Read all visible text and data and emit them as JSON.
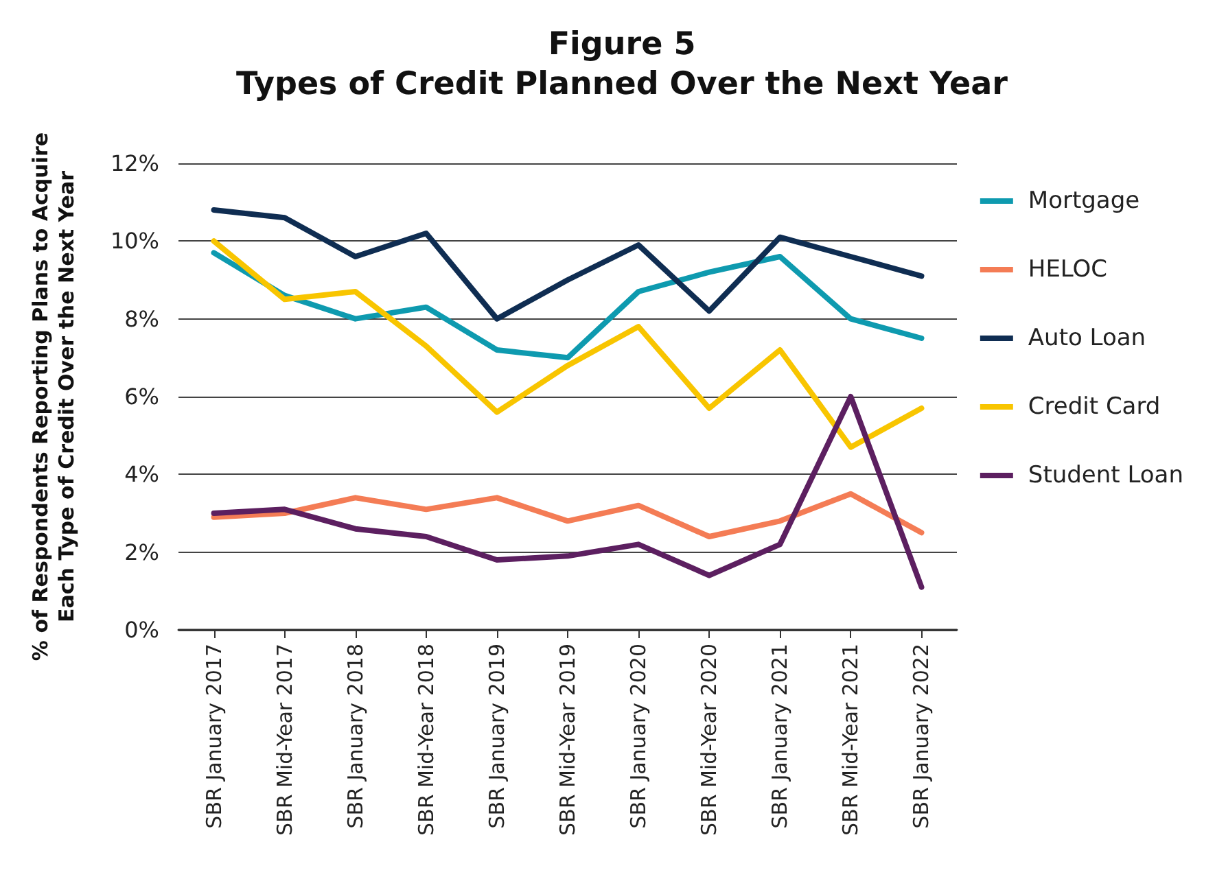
{
  "chart_data": {
    "type": "line",
    "title": "Figure 5",
    "subtitle": "Types of Credit Planned Over the Next Year",
    "ylabel": "% of Respondents Reporting Plans to Acquire\nEach Type of Credit Over the Next Year",
    "categories": [
      "SBR January 2017",
      "SBR Mid-Year 2017",
      "SBR January 2018",
      "SBR Mid-Year 2018",
      "SBR January 2019",
      "SBR Mid-Year 2019",
      "SBR January 2020",
      "SBR Mid-Year 2020",
      "SBR January 2021",
      "SBR Mid-Year 2021",
      "SBR January 2022"
    ],
    "series": [
      {
        "name": "Mortgage",
        "color": "#0e9aaf",
        "values": [
          9.7,
          8.6,
          8.0,
          8.3,
          7.2,
          7.0,
          8.7,
          9.2,
          9.6,
          8.0,
          7.5
        ]
      },
      {
        "name": "HELOC",
        "color": "#f47c55",
        "values": [
          2.9,
          3.0,
          3.4,
          3.1,
          3.4,
          2.8,
          3.2,
          2.4,
          2.8,
          3.5,
          2.5
        ]
      },
      {
        "name": "Auto Loan",
        "color": "#0f2d52",
        "values": [
          10.8,
          10.6,
          9.6,
          10.2,
          8.0,
          9.0,
          9.9,
          8.2,
          10.1,
          9.6,
          9.1
        ]
      },
      {
        "name": "Credit Card",
        "color": "#f8c500",
        "values": [
          10.0,
          8.5,
          8.7,
          7.3,
          5.6,
          6.8,
          7.8,
          5.7,
          7.2,
          4.7,
          5.7
        ]
      },
      {
        "name": "Student Loan",
        "color": "#5c1f60",
        "values": [
          3.0,
          3.1,
          2.6,
          2.4,
          1.8,
          1.9,
          2.2,
          1.4,
          2.2,
          6.0,
          1.1
        ]
      }
    ],
    "ylim": [
      0,
      12
    ],
    "yticks": [
      {
        "value": 0,
        "label": "0%"
      },
      {
        "value": 2,
        "label": "2%"
      },
      {
        "value": 4,
        "label": "4%"
      },
      {
        "value": 6,
        "label": "6%"
      },
      {
        "value": 8,
        "label": "8%"
      },
      {
        "value": 10,
        "label": "10%"
      },
      {
        "value": 12,
        "label": "12%"
      }
    ],
    "grid": "y",
    "legend": "right",
    "marker": "none",
    "line_style": "solid"
  }
}
